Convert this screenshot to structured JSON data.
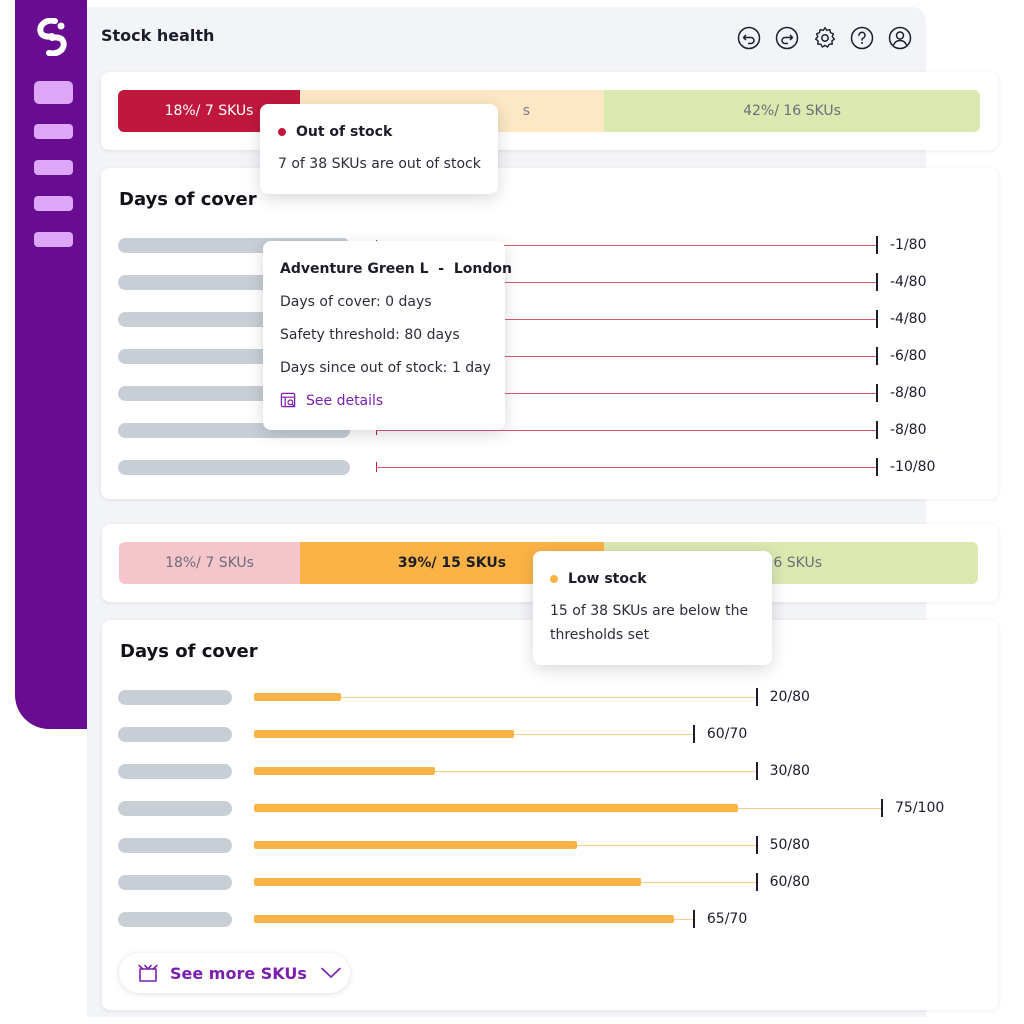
{
  "header": {
    "title": "Stock health"
  },
  "toolbar": {
    "icons": [
      "undo-icon",
      "redo-icon",
      "gear-icon",
      "help-icon",
      "user-icon"
    ]
  },
  "colors": {
    "sidebar": "#680d92",
    "nav_item": "#dea6f7",
    "out_of_stock": "#c0183c",
    "low_stock": "#fbb346",
    "healthy": "#dbe9b1",
    "link": "#7a1fb0"
  },
  "summary_top": {
    "segments": [
      {
        "label": "18%/ 7 SKUs",
        "share": 18
      },
      {
        "label": "",
        "share": 39
      },
      {
        "label": "42%/ 16 SKUs",
        "share": 42
      }
    ],
    "partial_text": "s"
  },
  "tooltip_out": {
    "title": "Out of stock",
    "text": "7 of 38 SKUs are out of stock"
  },
  "cover_out": {
    "title": "Days of cover",
    "rows": [
      {
        "label": "-1/80"
      },
      {
        "label": "-4/80"
      },
      {
        "label": "-4/80"
      },
      {
        "label": "-6/80"
      },
      {
        "label": "-8/80"
      },
      {
        "label": "-8/80"
      },
      {
        "label": "-10/80"
      }
    ]
  },
  "tooltip_detail": {
    "title": "Adventure Green L  -  London",
    "days_of_cover": "Days of cover: 0 days",
    "safety_threshold": "Safety threshold: 80 days",
    "days_since": "Days since out of stock: 1 day",
    "link": "See details"
  },
  "summary_low": {
    "segments": [
      {
        "label": "18%/ 7 SKUs",
        "share": 18
      },
      {
        "label": "39%/ 15 SKUs",
        "share": 39
      },
      {
        "label": "/ 16 SKUs",
        "share": 42
      }
    ]
  },
  "tooltip_low": {
    "title": "Low stock",
    "text_line1": "15 of 38 SKUs are below the",
    "text_line2": "thresholds set"
  },
  "cover_low": {
    "title": "Days of cover",
    "rows": [
      {
        "value": 20,
        "max": 80,
        "label": "20/80"
      },
      {
        "value": 60,
        "max": 70,
        "label": "60/70"
      },
      {
        "value": 30,
        "max": 80,
        "label": "30/80"
      },
      {
        "value": 75,
        "max": 100,
        "label": "75/100"
      },
      {
        "value": 50,
        "max": 80,
        "label": "50/80"
      },
      {
        "value": 60,
        "max": 80,
        "label": "60/80"
      },
      {
        "value": 65,
        "max": 70,
        "label": "65/70"
      }
    ]
  },
  "more_button": {
    "label": "See more SKUs"
  }
}
